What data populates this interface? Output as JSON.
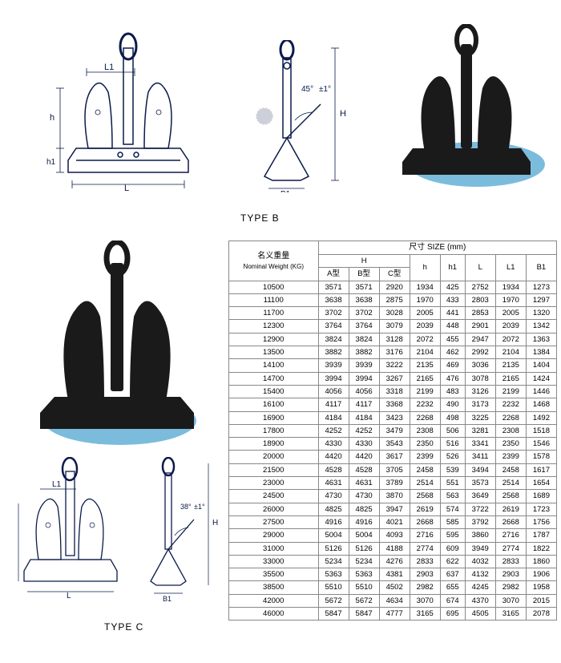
{
  "labels": {
    "type_b": "TYPE B",
    "type_c": "TYPE C",
    "dim_L": "L",
    "dim_L1": "L1",
    "dim_H": "H",
    "dim_h": "h",
    "dim_h1": "h1",
    "dim_B1": "B1",
    "angle_b_text": "45°±1°",
    "angle_c_text": "38°±1°"
  },
  "table": {
    "header": {
      "nominal_cn": "名义重量",
      "nominal_en": "Nominal Weight (KG)",
      "size_cn": "尺寸",
      "size_en": "SIZE (mm)",
      "H": "H",
      "sub": [
        "A型",
        "B型",
        "C型",
        "h",
        "h1",
        "L",
        "L1",
        "B1"
      ]
    },
    "columns": [
      "weight",
      "A",
      "B",
      "C",
      "h",
      "h1",
      "L",
      "L1",
      "B1"
    ],
    "rows": [
      [
        10500,
        3571,
        3571,
        2920,
        1934,
        425,
        2752,
        1934,
        1273
      ],
      [
        11100,
        3638,
        3638,
        2875,
        1970,
        433,
        2803,
        1970,
        1297
      ],
      [
        11700,
        3702,
        3702,
        3028,
        2005,
        441,
        2853,
        2005,
        1320
      ],
      [
        12300,
        3764,
        3764,
        3079,
        2039,
        448,
        2901,
        2039,
        1342
      ],
      [
        12900,
        3824,
        3824,
        3128,
        2072,
        455,
        2947,
        2072,
        1363
      ],
      [
        13500,
        3882,
        3882,
        3176,
        2104,
        462,
        2992,
        2104,
        1384
      ],
      [
        14100,
        3939,
        3939,
        3222,
        2135,
        469,
        3036,
        2135,
        1404
      ],
      [
        14700,
        3994,
        3994,
        3267,
        2165,
        476,
        3078,
        2165,
        1424
      ],
      [
        15400,
        4056,
        4056,
        3318,
        2199,
        483,
        3126,
        2199,
        1446
      ],
      [
        16100,
        4117,
        4117,
        3368,
        2232,
        490,
        3173,
        2232,
        1468
      ],
      [
        16900,
        4184,
        4184,
        3423,
        2268,
        498,
        3225,
        2268,
        1492
      ],
      [
        17800,
        4252,
        4252,
        3479,
        2308,
        506,
        3281,
        2308,
        1518
      ],
      [
        18900,
        4330,
        4330,
        3543,
        2350,
        516,
        3341,
        2350,
        1546
      ],
      [
        20000,
        4420,
        4420,
        3617,
        2399,
        526,
        3411,
        2399,
        1578
      ],
      [
        21500,
        4528,
        4528,
        3705,
        2458,
        539,
        3494,
        2458,
        1617
      ],
      [
        23000,
        4631,
        4631,
        3789,
        2514,
        551,
        3573,
        2514,
        1654
      ],
      [
        24500,
        4730,
        4730,
        3870,
        2568,
        563,
        3649,
        2568,
        1689
      ],
      [
        26000,
        4825,
        4825,
        3947,
        2619,
        574,
        3722,
        2619,
        1723
      ],
      [
        27500,
        4916,
        4916,
        4021,
        2668,
        585,
        3792,
        2668,
        1756
      ],
      [
        29000,
        5004,
        5004,
        4093,
        2716,
        595,
        3860,
        2716,
        1787
      ],
      [
        31000,
        5126,
        5126,
        4188,
        2774,
        609,
        3949,
        2774,
        1822
      ],
      [
        33000,
        5234,
        5234,
        4276,
        2833,
        622,
        4032,
        2833,
        1860
      ],
      [
        35500,
        5363,
        5363,
        4381,
        2903,
        637,
        4132,
        2903,
        1906
      ],
      [
        38500,
        5510,
        5510,
        4502,
        2982,
        655,
        4245,
        2982,
        1958
      ],
      [
        42000,
        5672,
        5672,
        4634,
        3070,
        674,
        4370,
        3070,
        2015
      ],
      [
        46000,
        5847,
        5847,
        4777,
        3165,
        695,
        4505,
        3165,
        2078
      ]
    ],
    "style": {
      "border_color": "#888888",
      "header_bg": "#ffffff",
      "font_size": 9.5,
      "text_color": "#000000"
    }
  },
  "colors": {
    "line_drawing": "#0a1a4a",
    "photo_silhouette": "#1a1a1a",
    "shadow_ellipse": "#6db5d8",
    "background": "#ffffff"
  }
}
